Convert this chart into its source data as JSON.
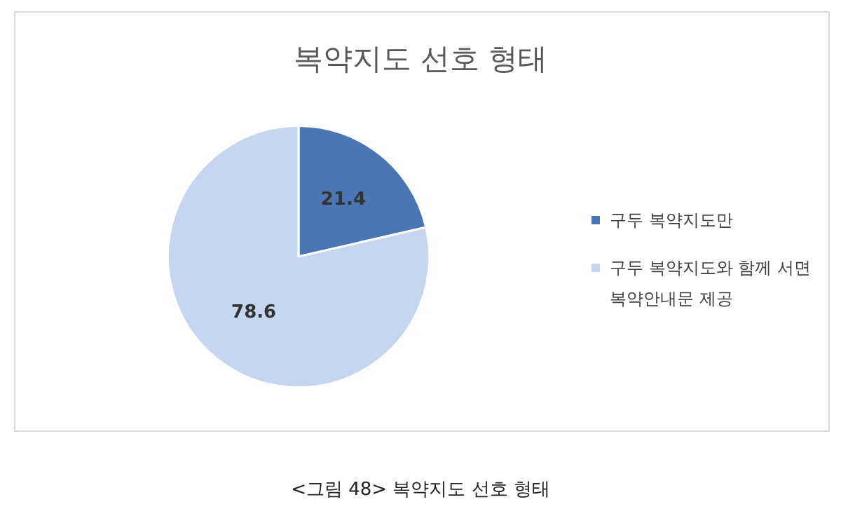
{
  "chart_data": {
    "type": "pie",
    "title": "복약지도 선호 형태",
    "categories": [
      "구두 복약지도만",
      "구두 복약지도와 함께 서면 복약안내문 제공"
    ],
    "values": [
      21.4,
      78.6
    ],
    "colors": [
      "#4a76b4",
      "#c6d6ee"
    ],
    "data_labels": true,
    "legend": "right",
    "annotations": [
      "<그림 48> 복약지도 선호 형태"
    ]
  }
}
